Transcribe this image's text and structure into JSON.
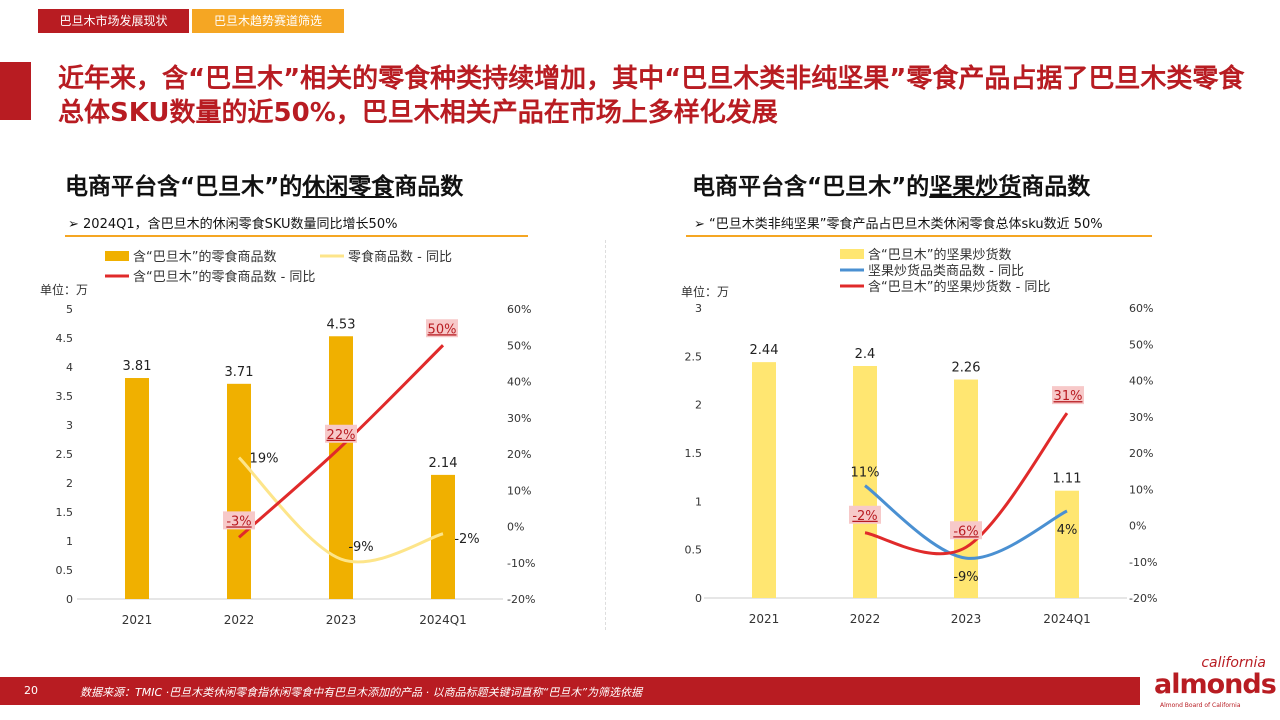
{
  "tabs": [
    "巴旦木市场发展现状",
    "巴旦木趋势赛道筛选"
  ],
  "headline": "近年来，含“巴旦木”相关的零食种类持续增加，其中“巴旦木类非纯坚果”零食产品占据了巴旦木类零食总体SKU数量的近50%，巴旦木相关产品在市场上多样化发展",
  "left": {
    "title_pre": "电商平台含“巴旦木”的",
    "title_u": "休闲零食",
    "title_post": "商品数",
    "note": "➢  2024Q1，含巴旦木的休闲零食SKU数量同比增长50%"
  },
  "right": {
    "title_pre": "电商平台含“巴旦木”的",
    "title_u": "坚果炒货",
    "title_post": "商品数",
    "note": "➢  “巴旦木类非纯坚果”零食产品占巴旦木类休闲零食总体sku数近 50%"
  },
  "footer": {
    "page": "20",
    "source": "数据来源：TMIC ·巴旦木类休闲零食指休闲零食中有巴旦木添加的产品 · 以商品标题关键词直称“巴旦木”为筛选依据"
  },
  "logo": {
    "top": "california",
    "main": "almonds",
    "sub": "Almond Board of California"
  },
  "colors": {
    "brand_red": "#b81c22",
    "orange": "#f5a623",
    "bar_left": "#f0b000",
    "bar_right": "#ffe671",
    "line_red": "#e02a2a",
    "line_yellow": "#fde58a",
    "line_blue": "#4a90d2",
    "label_bg": "#f7c9c9"
  },
  "chart_data": [
    {
      "type": "bar",
      "categories": [
        "2021",
        "2022",
        "2023",
        "2024Q1"
      ],
      "ylabel": "单位：万",
      "ylim": [
        0,
        5
      ],
      "y_ticks": [
        "0",
        "0.5",
        "1",
        "1.5",
        "2",
        "2.5",
        "3",
        "3.5",
        "4",
        "4.5",
        "5"
      ],
      "y2lim": [
        -20,
        60
      ],
      "y2_ticks": [
        "-20%",
        "-10%",
        "0%",
        "10%",
        "20%",
        "30%",
        "40%",
        "50%",
        "60%"
      ],
      "legend": [
        "含“巴旦木”的零食商品数",
        "零食商品数 - 同比",
        "含“巴旦木”的零食商品数 - 同比"
      ],
      "series": [
        {
          "name": "含“巴旦木”的零食商品数",
          "values": [
            3.81,
            3.71,
            4.53,
            2.14
          ],
          "labels": [
            "3.81",
            "3.71",
            "4.53",
            "2.14"
          ]
        },
        {
          "name": "零食商品数 - 同比",
          "values": [
            null,
            19,
            -9,
            -2
          ],
          "labels": [
            "",
            "19%",
            "-9%",
            "-2%"
          ]
        },
        {
          "name": "含“巴旦木”的零食商品数 - 同比",
          "values": [
            null,
            -3,
            22,
            50
          ],
          "labels": [
            "",
            "-3%",
            "22%",
            "50%"
          ]
        }
      ]
    },
    {
      "type": "bar",
      "categories": [
        "2021",
        "2022",
        "2023",
        "2024Q1"
      ],
      "ylabel": "单位：万",
      "ylim": [
        0,
        3
      ],
      "y_ticks": [
        "0",
        "0.5",
        "1",
        "1.5",
        "2",
        "2.5",
        "3"
      ],
      "y2lim": [
        -20,
        60
      ],
      "y2_ticks": [
        "-20%",
        "-10%",
        "0%",
        "10%",
        "20%",
        "30%",
        "40%",
        "50%",
        "60%"
      ],
      "legend": [
        "含“巴旦木”的坚果炒货数",
        "坚果炒货品类商品数 - 同比",
        "含“巴旦木”的坚果炒货数 - 同比"
      ],
      "series": [
        {
          "name": "含“巴旦木”的坚果炒货数",
          "values": [
            2.44,
            2.4,
            2.26,
            1.11
          ],
          "labels": [
            "2.44",
            "2.4",
            "2.26",
            "1.11"
          ]
        },
        {
          "name": "坚果炒货品类商品数 - 同比",
          "values": [
            null,
            11,
            -9,
            4
          ],
          "labels": [
            "",
            "11%",
            "-9%",
            "4%"
          ]
        },
        {
          "name": "含“巴旦木”的坚果炒货数 - 同比",
          "values": [
            null,
            -2,
            -6,
            31
          ],
          "labels": [
            "",
            "-2%",
            "-6%",
            "31%"
          ]
        }
      ]
    }
  ]
}
